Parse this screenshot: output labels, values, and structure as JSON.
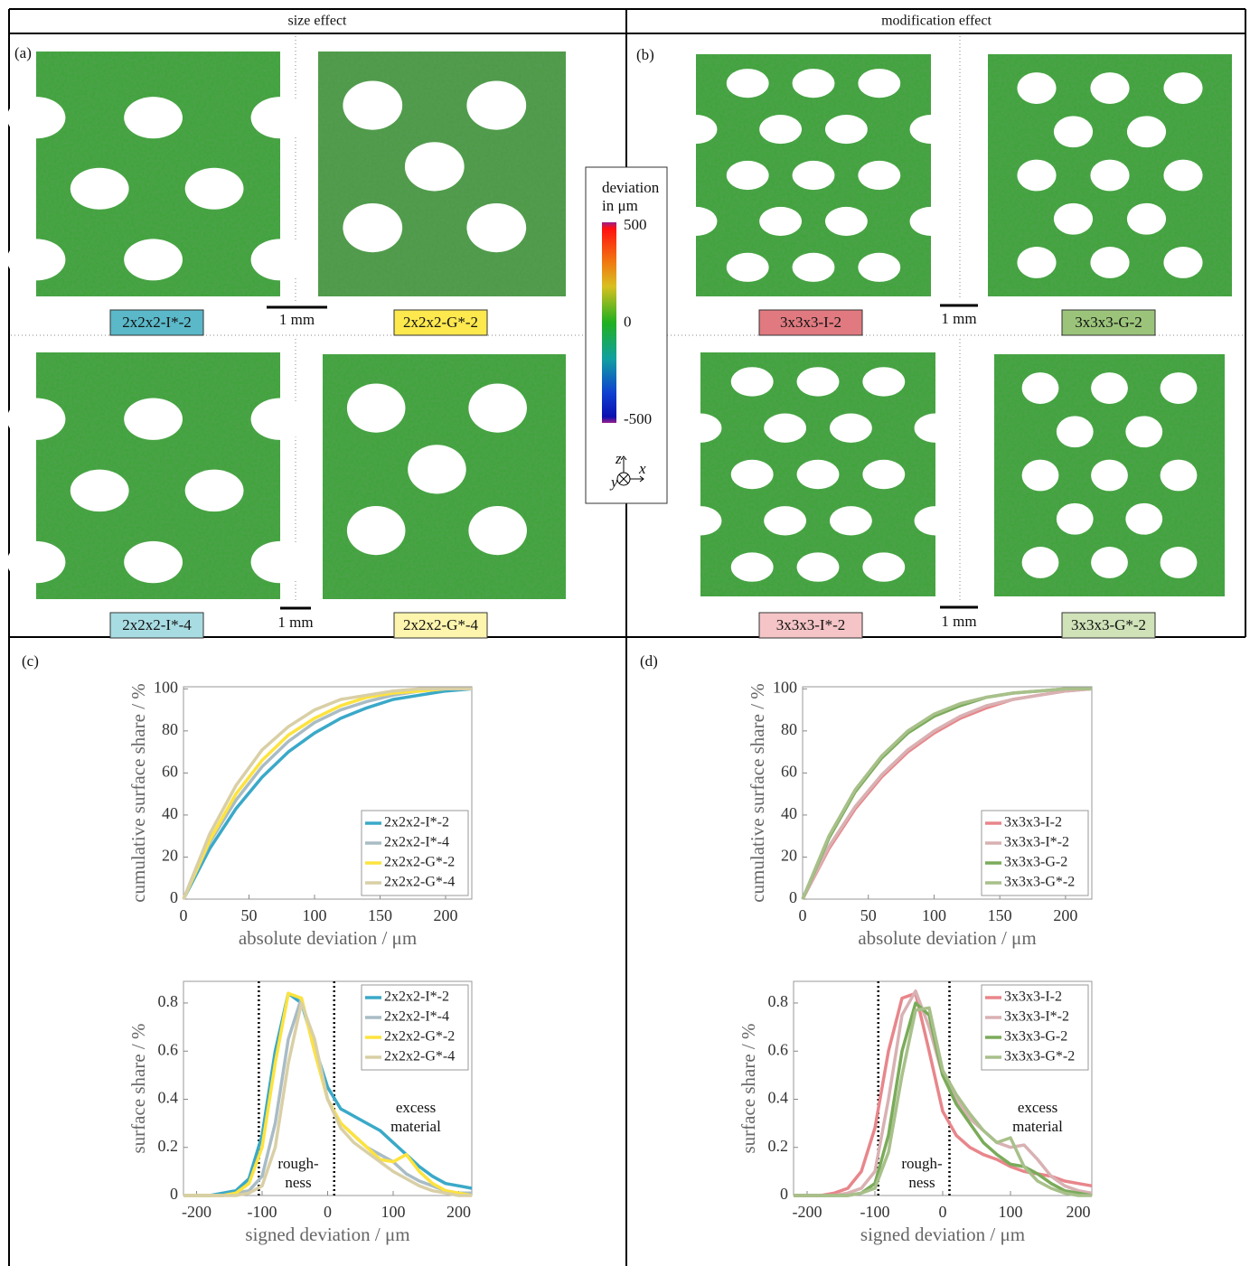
{
  "figure": {
    "headers": [
      "size effect",
      "modification effect"
    ],
    "panel_labels": [
      "(a)",
      "(b)",
      "(c)",
      "(d)"
    ],
    "sample_labels": [
      {
        "text": "2x2x2-I*-2",
        "color": "#5ab8c8"
      },
      {
        "text": "2x2x2-G*-2",
        "color": "#fde84e"
      },
      {
        "text": "2x2x2-I*-4",
        "color": "#a8dce3"
      },
      {
        "text": "2x2x2-G*-4",
        "color": "#fdf4ad"
      },
      {
        "text": "3x3x3-I-2",
        "color": "#e07a80"
      },
      {
        "text": "3x3x3-G-2",
        "color": "#9bc47a"
      },
      {
        "text": "3x3x3-I*-2",
        "color": "#f4c4c6"
      },
      {
        "text": "3x3x3-G*-2",
        "color": "#cfe2b8"
      }
    ],
    "scale_bar": "1 mm",
    "colorbar": {
      "label": [
        "deviation",
        "in μm"
      ],
      "lim": [
        -500,
        500
      ],
      "ticks": [
        500,
        0,
        -500
      ]
    },
    "axes_icon": [
      "z",
      "y",
      "x"
    ]
  },
  "chart_data": [
    {
      "type": "line",
      "xlabel": "absolute deviation / μm",
      "ylabel": "cumulative surface share / %",
      "xlim": [
        0,
        220
      ],
      "ylim": [
        0,
        101
      ],
      "xticks": [
        0,
        50,
        100,
        150,
        200
      ],
      "yticks": [
        0,
        20,
        40,
        60,
        80,
        100
      ],
      "legend": "lower right",
      "x": [
        0,
        20,
        40,
        60,
        80,
        100,
        120,
        140,
        160,
        180,
        200,
        220
      ],
      "series": [
        {
          "name": "2x2x2-I*-2",
          "color": "#3aa9c8",
          "values": [
            0,
            24,
            43,
            58,
            70,
            79,
            86,
            91,
            95,
            97,
            99,
            100
          ]
        },
        {
          "name": "2x2x2-I*-4",
          "color": "#a9bcc5",
          "values": [
            0,
            27,
            47,
            63,
            75,
            84,
            90,
            94,
            97,
            99,
            100,
            100
          ]
        },
        {
          "name": "2x2x2-G*-2",
          "color": "#fde33e",
          "values": [
            0,
            28,
            50,
            66,
            78,
            86,
            92,
            96,
            98,
            99,
            100,
            100
          ]
        },
        {
          "name": "2x2x2-G*-4",
          "color": "#d9cfa6",
          "values": [
            0,
            31,
            54,
            71,
            82,
            90,
            95,
            97,
            99,
            100,
            100,
            100
          ]
        }
      ]
    },
    {
      "type": "line",
      "xlabel": "signed deviation / μm",
      "ylabel": "surface share / %",
      "xlim": [
        -220,
        220
      ],
      "ylim": [
        0,
        0.89
      ],
      "xticks": [
        -200,
        -100,
        0,
        100,
        200
      ],
      "yticks": [
        0,
        0.2,
        0.4,
        0.6,
        0.8
      ],
      "legend": "upper right",
      "vlines": [
        -105,
        10
      ],
      "annotations": [
        [
          "rough-",
          "ness"
        ],
        [
          "excess",
          "material"
        ]
      ],
      "x": [
        -220,
        -200,
        -180,
        -160,
        -140,
        -120,
        -100,
        -80,
        -60,
        -40,
        -20,
        0,
        20,
        40,
        60,
        80,
        100,
        120,
        140,
        160,
        180,
        200,
        220
      ],
      "series": [
        {
          "name": "2x2x2-I*-2",
          "color": "#3aa9c8",
          "values": [
            0,
            0,
            0,
            0.01,
            0.02,
            0.07,
            0.25,
            0.6,
            0.84,
            0.8,
            0.62,
            0.45,
            0.36,
            0.33,
            0.3,
            0.27,
            0.22,
            0.17,
            0.12,
            0.08,
            0.05,
            0.04,
            0.03
          ]
        },
        {
          "name": "2x2x2-I*-4",
          "color": "#a9bcc5",
          "values": [
            0,
            0,
            0,
            0,
            0.01,
            0.02,
            0.08,
            0.3,
            0.65,
            0.82,
            0.6,
            0.4,
            0.3,
            0.25,
            0.2,
            0.17,
            0.14,
            0.09,
            0.06,
            0.04,
            0.02,
            0.01,
            0.01
          ]
        },
        {
          "name": "2x2x2-G*-2",
          "color": "#fde33e",
          "values": [
            0,
            0,
            0,
            0,
            0.01,
            0.05,
            0.2,
            0.55,
            0.84,
            0.82,
            0.6,
            0.4,
            0.3,
            0.25,
            0.2,
            0.15,
            0.14,
            0.17,
            0.1,
            0.05,
            0.02,
            0.01,
            0
          ]
        },
        {
          "name": "2x2x2-G*-4",
          "color": "#d9cfa6",
          "values": [
            0,
            0,
            0,
            0,
            0,
            0.01,
            0.04,
            0.2,
            0.55,
            0.8,
            0.65,
            0.4,
            0.28,
            0.22,
            0.18,
            0.14,
            0.1,
            0.07,
            0.04,
            0.02,
            0.01,
            0,
            0
          ]
        }
      ]
    },
    {
      "type": "line",
      "xlabel": "absolute deviation / μm",
      "ylabel": "cumulative surface share / %",
      "xlim": [
        0,
        220
      ],
      "ylim": [
        0,
        101
      ],
      "xticks": [
        0,
        50,
        100,
        150,
        200
      ],
      "yticks": [
        0,
        20,
        40,
        60,
        80,
        100
      ],
      "legend": "lower right",
      "x": [
        0,
        20,
        40,
        60,
        80,
        100,
        120,
        140,
        160,
        180,
        200,
        220
      ],
      "series": [
        {
          "name": "3x3x3-I-2",
          "color": "#e8868b",
          "values": [
            0,
            24,
            43,
            58,
            70,
            79,
            86,
            91,
            95,
            97,
            99,
            100
          ]
        },
        {
          "name": "3x3x3-I*-2",
          "color": "#d9b1b3",
          "values": [
            0,
            25,
            44,
            59,
            71,
            80,
            87,
            92,
            95,
            97,
            99,
            100
          ]
        },
        {
          "name": "3x3x3-G-2",
          "color": "#7aab5a",
          "values": [
            0,
            29,
            51,
            67,
            79,
            87,
            92,
            96,
            98,
            99,
            100,
            100
          ]
        },
        {
          "name": "3x3x3-G*-2",
          "color": "#a8c08a",
          "values": [
            0,
            30,
            52,
            68,
            80,
            88,
            93,
            96,
            98,
            99,
            100,
            100
          ]
        }
      ]
    },
    {
      "type": "line",
      "xlabel": "signed deviation / μm",
      "ylabel": "surface share / %",
      "xlim": [
        -220,
        220
      ],
      "ylim": [
        0,
        0.89
      ],
      "xticks": [
        -200,
        -100,
        0,
        100,
        200
      ],
      "yticks": [
        0,
        0.2,
        0.4,
        0.6,
        0.8
      ],
      "legend": "upper right",
      "vlines": [
        -95,
        10
      ],
      "annotations": [
        [
          "rough-",
          "ness"
        ],
        [
          "excess",
          "material"
        ]
      ],
      "x": [
        -220,
        -200,
        -180,
        -160,
        -140,
        -120,
        -100,
        -80,
        -60,
        -40,
        -20,
        0,
        20,
        40,
        60,
        80,
        100,
        120,
        140,
        160,
        180,
        200,
        220
      ],
      "series": [
        {
          "name": "3x3x3-I-2",
          "color": "#e8868b",
          "values": [
            0,
            0,
            0,
            0.01,
            0.03,
            0.1,
            0.28,
            0.6,
            0.82,
            0.84,
            0.6,
            0.35,
            0.25,
            0.2,
            0.17,
            0.15,
            0.12,
            0.1,
            0.09,
            0.08,
            0.06,
            0.05,
            0.04
          ]
        },
        {
          "name": "3x3x3-I*-2",
          "color": "#d9b1b3",
          "values": [
            0,
            0,
            0,
            0,
            0.01,
            0.03,
            0.1,
            0.4,
            0.75,
            0.85,
            0.7,
            0.5,
            0.4,
            0.32,
            0.27,
            0.22,
            0.2,
            0.21,
            0.15,
            0.08,
            0.04,
            0.02,
            0.01
          ]
        },
        {
          "name": "3x3x3-G-2",
          "color": "#7aab5a",
          "values": [
            0,
            0,
            0,
            0,
            0,
            0.01,
            0.05,
            0.25,
            0.6,
            0.8,
            0.75,
            0.5,
            0.38,
            0.3,
            0.22,
            0.17,
            0.13,
            0.12,
            0.09,
            0.05,
            0.02,
            0.01,
            0
          ]
        },
        {
          "name": "3x3x3-G*-2",
          "color": "#a8c08a",
          "values": [
            0,
            0,
            0,
            0,
            0,
            0.01,
            0.03,
            0.18,
            0.5,
            0.77,
            0.78,
            0.52,
            0.42,
            0.34,
            0.27,
            0.22,
            0.24,
            0.12,
            0.06,
            0.03,
            0.01,
            0,
            0
          ]
        }
      ]
    }
  ]
}
